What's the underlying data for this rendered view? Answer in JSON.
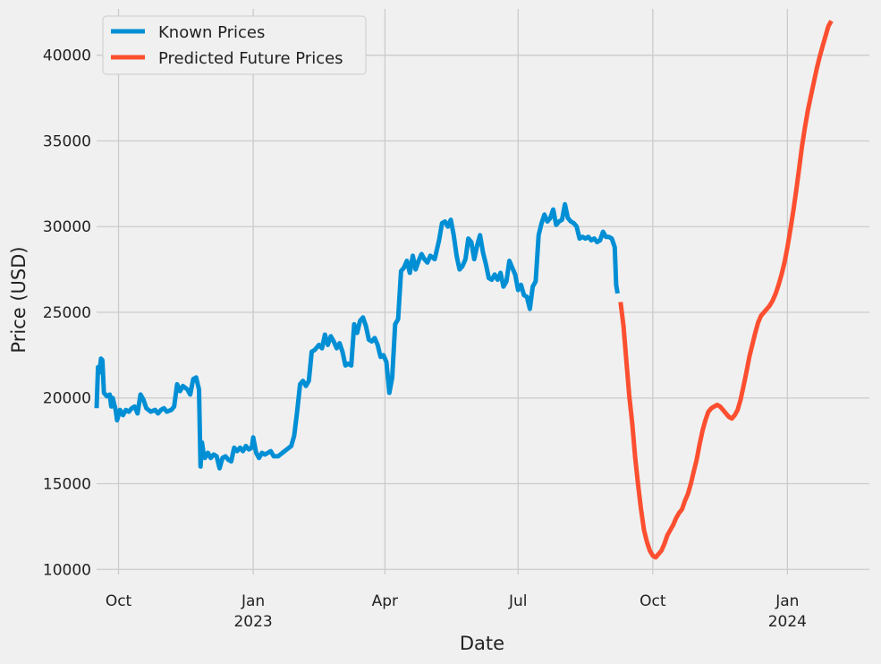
{
  "chart_data": {
    "type": "line",
    "xlabel": "Date",
    "ylabel": "Price (USD)",
    "ylim": [
      9700,
      42700
    ],
    "xlim": [
      "2022-09-16",
      "2024-02-26"
    ],
    "grid": true,
    "legend_position": "top-left",
    "y_ticks": [
      10000,
      15000,
      20000,
      25000,
      30000,
      35000,
      40000
    ],
    "x_ticks": [
      {
        "date": "2022-10-01",
        "label": "Oct",
        "sublabel": ""
      },
      {
        "date": "2023-01-01",
        "label": "Jan",
        "sublabel": "2023"
      },
      {
        "date": "2023-04-01",
        "label": "Apr",
        "sublabel": ""
      },
      {
        "date": "2023-07-01",
        "label": "Jul",
        "sublabel": ""
      },
      {
        "date": "2023-10-01",
        "label": "Oct",
        "sublabel": ""
      },
      {
        "date": "2024-01-01",
        "label": "Jan",
        "sublabel": "2024"
      }
    ],
    "colors": {
      "known": "#008fd5",
      "predicted": "#fc4f30"
    },
    "series": [
      {
        "name": "Known Prices",
        "points": [
          [
            "2022-09-16",
            19400
          ],
          [
            "2022-09-17",
            21800
          ],
          [
            "2022-09-18",
            21500
          ],
          [
            "2022-09-19",
            22300
          ],
          [
            "2022-09-20",
            22200
          ],
          [
            "2022-09-21",
            20300
          ],
          [
            "2022-09-23",
            20100
          ],
          [
            "2022-09-25",
            20200
          ],
          [
            "2022-09-26",
            19500
          ],
          [
            "2022-09-27",
            20000
          ],
          [
            "2022-09-29",
            19300
          ],
          [
            "2022-09-30",
            18700
          ],
          [
            "2022-10-02",
            19300
          ],
          [
            "2022-10-04",
            19000
          ],
          [
            "2022-10-06",
            19300
          ],
          [
            "2022-10-08",
            19200
          ],
          [
            "2022-10-10",
            19400
          ],
          [
            "2022-10-12",
            19500
          ],
          [
            "2022-10-14",
            19100
          ],
          [
            "2022-10-16",
            20200
          ],
          [
            "2022-10-18",
            19900
          ],
          [
            "2022-10-20",
            19400
          ],
          [
            "2022-10-23",
            19200
          ],
          [
            "2022-10-26",
            19300
          ],
          [
            "2022-10-28",
            19100
          ],
          [
            "2022-10-30",
            19300
          ],
          [
            "2022-11-01",
            19400
          ],
          [
            "2022-11-03",
            19200
          ],
          [
            "2022-11-06",
            19300
          ],
          [
            "2022-11-08",
            19500
          ],
          [
            "2022-11-10",
            20800
          ],
          [
            "2022-11-12",
            20400
          ],
          [
            "2022-11-14",
            20700
          ],
          [
            "2022-11-17",
            20500
          ],
          [
            "2022-11-19",
            20200
          ],
          [
            "2022-11-21",
            21100
          ],
          [
            "2022-11-23",
            21200
          ],
          [
            "2022-11-25",
            20500
          ],
          [
            "2022-11-26",
            16000
          ],
          [
            "2022-11-27",
            17400
          ],
          [
            "2022-11-28",
            16800
          ],
          [
            "2022-11-29",
            16500
          ],
          [
            "2022-12-01",
            16800
          ],
          [
            "2022-12-03",
            16500
          ],
          [
            "2022-12-05",
            16700
          ],
          [
            "2022-12-07",
            16600
          ],
          [
            "2022-12-09",
            15900
          ],
          [
            "2022-12-11",
            16500
          ],
          [
            "2022-12-13",
            16600
          ],
          [
            "2022-12-15",
            16400
          ],
          [
            "2022-12-17",
            16300
          ],
          [
            "2022-12-19",
            17100
          ],
          [
            "2022-12-21",
            16900
          ],
          [
            "2022-12-23",
            17100
          ],
          [
            "2022-12-25",
            16900
          ],
          [
            "2022-12-27",
            17200
          ],
          [
            "2022-12-29",
            17000
          ],
          [
            "2022-12-31",
            17100
          ],
          [
            "2023-01-01",
            17700
          ],
          [
            "2023-01-03",
            16800
          ],
          [
            "2023-01-05",
            16500
          ],
          [
            "2023-01-07",
            16800
          ],
          [
            "2023-01-09",
            16700
          ],
          [
            "2023-01-11",
            16800
          ],
          [
            "2023-01-13",
            16900
          ],
          [
            "2023-01-15",
            16600
          ],
          [
            "2023-01-18",
            16600
          ],
          [
            "2023-01-21",
            16800
          ],
          [
            "2023-01-24",
            17000
          ],
          [
            "2023-01-27",
            17200
          ],
          [
            "2023-01-29",
            17800
          ],
          [
            "2023-01-31",
            19200
          ],
          [
            "2023-02-02",
            20800
          ],
          [
            "2023-02-04",
            21000
          ],
          [
            "2023-02-06",
            20700
          ],
          [
            "2023-02-08",
            21000
          ],
          [
            "2023-02-10",
            22700
          ],
          [
            "2023-02-12",
            22800
          ],
          [
            "2023-02-15",
            23100
          ],
          [
            "2023-02-17",
            22900
          ],
          [
            "2023-02-19",
            23700
          ],
          [
            "2023-02-21",
            23100
          ],
          [
            "2023-02-23",
            23600
          ],
          [
            "2023-02-25",
            23300
          ],
          [
            "2023-02-27",
            22900
          ],
          [
            "2023-03-01",
            23200
          ],
          [
            "2023-03-03",
            22700
          ],
          [
            "2023-03-05",
            21900
          ],
          [
            "2023-03-07",
            22000
          ],
          [
            "2023-03-09",
            21900
          ],
          [
            "2023-03-11",
            24300
          ],
          [
            "2023-03-13",
            23800
          ],
          [
            "2023-03-15",
            24500
          ],
          [
            "2023-03-17",
            24700
          ],
          [
            "2023-03-19",
            24200
          ],
          [
            "2023-03-21",
            23400
          ],
          [
            "2023-03-23",
            23300
          ],
          [
            "2023-03-25",
            23500
          ],
          [
            "2023-03-27",
            23100
          ],
          [
            "2023-03-29",
            22400
          ],
          [
            "2023-03-31",
            22500
          ],
          [
            "2023-04-02",
            22100
          ],
          [
            "2023-04-04",
            20300
          ],
          [
            "2023-04-06",
            21200
          ],
          [
            "2023-04-08",
            24300
          ],
          [
            "2023-04-10",
            24600
          ],
          [
            "2023-04-12",
            27400
          ],
          [
            "2023-04-14",
            27600
          ],
          [
            "2023-04-16",
            28000
          ],
          [
            "2023-04-18",
            27300
          ],
          [
            "2023-04-20",
            28300
          ],
          [
            "2023-04-22",
            27500
          ],
          [
            "2023-04-24",
            28000
          ],
          [
            "2023-04-26",
            28400
          ],
          [
            "2023-04-28",
            28100
          ],
          [
            "2023-04-30",
            27900
          ],
          [
            "2023-05-02",
            28300
          ],
          [
            "2023-05-05",
            28100
          ],
          [
            "2023-05-08",
            29200
          ],
          [
            "2023-05-10",
            30200
          ],
          [
            "2023-05-12",
            30300
          ],
          [
            "2023-05-14",
            30000
          ],
          [
            "2023-05-16",
            30400
          ],
          [
            "2023-05-18",
            29500
          ],
          [
            "2023-05-20",
            28300
          ],
          [
            "2023-05-22",
            27500
          ],
          [
            "2023-05-24",
            27700
          ],
          [
            "2023-05-26",
            28100
          ],
          [
            "2023-05-28",
            29300
          ],
          [
            "2023-05-30",
            29100
          ],
          [
            "2023-06-01",
            28100
          ],
          [
            "2023-06-03",
            28900
          ],
          [
            "2023-06-05",
            29500
          ],
          [
            "2023-06-07",
            28500
          ],
          [
            "2023-06-09",
            27800
          ],
          [
            "2023-06-11",
            27000
          ],
          [
            "2023-06-13",
            26900
          ],
          [
            "2023-06-15",
            27200
          ],
          [
            "2023-06-17",
            26900
          ],
          [
            "2023-06-19",
            27300
          ],
          [
            "2023-06-21",
            26500
          ],
          [
            "2023-06-23",
            26800
          ],
          [
            "2023-06-25",
            28000
          ],
          [
            "2023-06-27",
            27600
          ],
          [
            "2023-06-29",
            27200
          ],
          [
            "2023-07-01",
            26300
          ],
          [
            "2023-07-03",
            26600
          ],
          [
            "2023-07-05",
            26000
          ],
          [
            "2023-07-07",
            25900
          ],
          [
            "2023-07-09",
            25200
          ],
          [
            "2023-07-11",
            26500
          ],
          [
            "2023-07-13",
            26800
          ],
          [
            "2023-07-15",
            29500
          ],
          [
            "2023-07-17",
            30200
          ],
          [
            "2023-07-19",
            30700
          ],
          [
            "2023-07-21",
            30300
          ],
          [
            "2023-07-23",
            30500
          ],
          [
            "2023-07-25",
            31000
          ],
          [
            "2023-07-27",
            30100
          ],
          [
            "2023-07-29",
            30300
          ],
          [
            "2023-07-31",
            30400
          ],
          [
            "2023-08-02",
            31300
          ],
          [
            "2023-08-04",
            30500
          ],
          [
            "2023-08-06",
            30300
          ],
          [
            "2023-08-08",
            30200
          ],
          [
            "2023-08-10",
            30000
          ],
          [
            "2023-08-12",
            29300
          ],
          [
            "2023-08-14",
            29400
          ],
          [
            "2023-08-16",
            29300
          ],
          [
            "2023-08-18",
            29400
          ],
          [
            "2023-08-20",
            29200
          ],
          [
            "2023-08-22",
            29300
          ],
          [
            "2023-08-24",
            29100
          ],
          [
            "2023-08-26",
            29200
          ],
          [
            "2023-08-28",
            29700
          ],
          [
            "2023-08-30",
            29400
          ],
          [
            "2023-09-01",
            29400
          ],
          [
            "2023-09-03",
            29300
          ],
          [
            "2023-09-05",
            28800
          ],
          [
            "2023-09-06",
            26600
          ],
          [
            "2023-09-07",
            26100
          ]
        ]
      },
      {
        "name": "Predicted Future Prices",
        "points": [
          [
            "2023-09-09",
            25600
          ],
          [
            "2023-09-11",
            24200
          ],
          [
            "2023-09-13",
            22100
          ],
          [
            "2023-09-15",
            20100
          ],
          [
            "2023-09-17",
            18500
          ],
          [
            "2023-09-19",
            16500
          ],
          [
            "2023-09-21",
            14900
          ],
          [
            "2023-09-23",
            13500
          ],
          [
            "2023-09-25",
            12300
          ],
          [
            "2023-09-27",
            11600
          ],
          [
            "2023-09-29",
            11100
          ],
          [
            "2023-10-01",
            10800
          ],
          [
            "2023-10-03",
            10700
          ],
          [
            "2023-10-05",
            10900
          ],
          [
            "2023-10-07",
            11100
          ],
          [
            "2023-10-09",
            11500
          ],
          [
            "2023-10-11",
            12000
          ],
          [
            "2023-10-13",
            12300
          ],
          [
            "2023-10-15",
            12600
          ],
          [
            "2023-10-17",
            13000
          ],
          [
            "2023-10-19",
            13300
          ],
          [
            "2023-10-21",
            13500
          ],
          [
            "2023-10-23",
            14000
          ],
          [
            "2023-10-25",
            14400
          ],
          [
            "2023-10-27",
            15000
          ],
          [
            "2023-10-29",
            15700
          ],
          [
            "2023-10-31",
            16400
          ],
          [
            "2023-11-02",
            17300
          ],
          [
            "2023-11-04",
            18100
          ],
          [
            "2023-11-06",
            18700
          ],
          [
            "2023-11-08",
            19200
          ],
          [
            "2023-11-10",
            19400
          ],
          [
            "2023-11-12",
            19500
          ],
          [
            "2023-11-14",
            19600
          ],
          [
            "2023-11-16",
            19500
          ],
          [
            "2023-11-18",
            19300
          ],
          [
            "2023-11-20",
            19100
          ],
          [
            "2023-11-22",
            18900
          ],
          [
            "2023-11-24",
            18800
          ],
          [
            "2023-11-26",
            19000
          ],
          [
            "2023-11-28",
            19300
          ],
          [
            "2023-11-30",
            19900
          ],
          [
            "2023-12-02",
            20700
          ],
          [
            "2023-12-04",
            21500
          ],
          [
            "2023-12-06",
            22400
          ],
          [
            "2023-12-08",
            23100
          ],
          [
            "2023-12-10",
            23800
          ],
          [
            "2023-12-12",
            24400
          ],
          [
            "2023-12-14",
            24800
          ],
          [
            "2023-12-16",
            25000
          ],
          [
            "2023-12-18",
            25200
          ],
          [
            "2023-12-20",
            25400
          ],
          [
            "2023-12-22",
            25700
          ],
          [
            "2023-12-24",
            26100
          ],
          [
            "2023-12-26",
            26600
          ],
          [
            "2023-12-28",
            27200
          ],
          [
            "2023-12-30",
            27900
          ],
          [
            "2024-01-01",
            28800
          ],
          [
            "2024-01-03",
            29800
          ],
          [
            "2024-01-05",
            30900
          ],
          [
            "2024-01-07",
            32100
          ],
          [
            "2024-01-09",
            33400
          ],
          [
            "2024-01-11",
            34700
          ],
          [
            "2024-01-13",
            35800
          ],
          [
            "2024-01-15",
            36800
          ],
          [
            "2024-01-17",
            37600
          ],
          [
            "2024-01-19",
            38400
          ],
          [
            "2024-01-21",
            39200
          ],
          [
            "2024-01-23",
            39900
          ],
          [
            "2024-01-25",
            40500
          ],
          [
            "2024-01-27",
            41100
          ],
          [
            "2024-01-29",
            41700
          ],
          [
            "2024-01-31",
            42000
          ]
        ]
      }
    ]
  }
}
